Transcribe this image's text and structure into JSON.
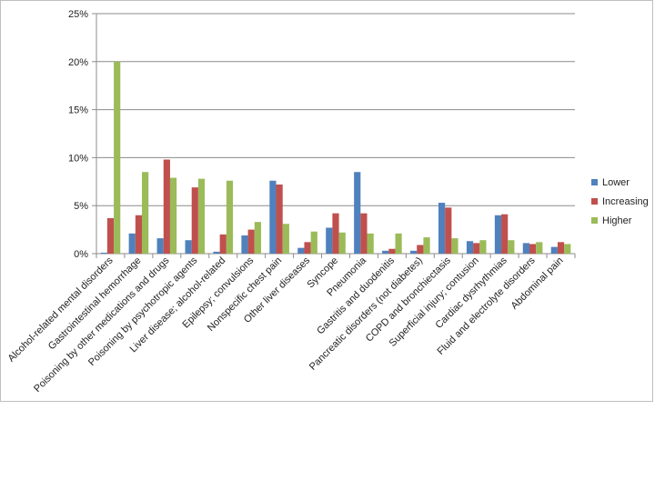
{
  "chart_data": {
    "type": "bar",
    "title": "",
    "xlabel": "",
    "ylabel": "",
    "ylim": [
      0,
      25
    ],
    "y_ticks": [
      "0%",
      "5%",
      "10%",
      "15%",
      "20%",
      "25%"
    ],
    "y_tick_values": [
      0,
      5,
      10,
      15,
      20,
      25
    ],
    "grid": "horizontal",
    "legend_position": "right",
    "categories": [
      "Alcohol-related mental disorders",
      "Gastrointestinal hemorrhage",
      "Poisoning by other medications and drugs",
      "Poisoning by psychotropic agents",
      "Liver disease; alcohol-related",
      "Epilepsy; convulsions",
      "Nonspecific chest pain",
      "Other liver diseases",
      "Syncope",
      "Pneumonia",
      "Gastritis and duodenitis",
      "Pancreatic disorders (not diabetes)",
      "COPD and bronchiectasis",
      "Superficial injury; contusion",
      "Cardiac dysrhythmias",
      "Fluid and electrolyte disorders",
      "Abdominal pain"
    ],
    "series": [
      {
        "name": "Lower",
        "color": "#4f81bd",
        "values": [
          0.1,
          2.1,
          1.6,
          1.4,
          0.2,
          1.9,
          7.6,
          0.6,
          2.7,
          8.5,
          0.3,
          0.3,
          5.3,
          1.3,
          4.0,
          1.1,
          0.7
        ]
      },
      {
        "name": "Increasing",
        "color": "#c0504d",
        "values": [
          3.7,
          4.0,
          9.8,
          6.9,
          2.0,
          2.5,
          7.2,
          1.2,
          4.2,
          4.2,
          0.5,
          0.9,
          4.8,
          1.1,
          4.1,
          1.0,
          1.2
        ]
      },
      {
        "name": "Higher",
        "color": "#9bbb59",
        "values": [
          20.0,
          8.5,
          7.9,
          7.8,
          7.6,
          3.3,
          3.1,
          2.3,
          2.2,
          2.1,
          2.1,
          1.7,
          1.6,
          1.4,
          1.4,
          1.2,
          1.0
        ]
      }
    ]
  }
}
